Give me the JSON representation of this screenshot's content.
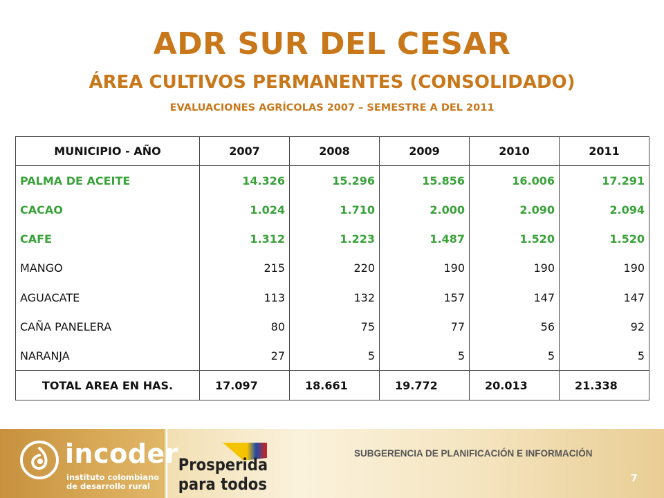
{
  "header": {
    "title": "ADR SUR DEL CESAR",
    "subtitle": "ÁREA CULTIVOS PERMANENTES (CONSOLIDADO)",
    "subsubtitle": "EVALUACIONES AGRÍCOLAS 2007 – SEMESTRE A DEL 2011"
  },
  "colors": {
    "title": "#c8781a",
    "highlight_rows": "#3aa23a",
    "footer_band": "#e9cd94"
  },
  "table": {
    "columns": [
      "MUNICIPIO - AÑO",
      "2007",
      "2008",
      "2009",
      "2010",
      "2011"
    ],
    "rows": [
      {
        "label": "PALMA DE ACEITE",
        "values": [
          "14.326",
          "15.296",
          "15.856",
          "16.006",
          "17.291"
        ]
      },
      {
        "label": "CACAO",
        "values": [
          "1.024",
          "1.710",
          "2.000",
          "2.090",
          "2.094"
        ]
      },
      {
        "label": "CAFE",
        "values": [
          "1.312",
          "1.223",
          "1.487",
          "1.520",
          "1.520"
        ]
      },
      {
        "label": "MANGO",
        "values": [
          "215",
          "220",
          "190",
          "190",
          "190"
        ]
      },
      {
        "label": "AGUACATE",
        "values": [
          "113",
          "132",
          "157",
          "147",
          "147"
        ]
      },
      {
        "label": "CAÑA PANELERA",
        "values": [
          "80",
          "75",
          "77",
          "56",
          "92"
        ]
      },
      {
        "label": "NARANJA",
        "values": [
          "27",
          "5",
          "5",
          "5",
          "5"
        ]
      }
    ],
    "total": {
      "label": "TOTAL AREA EN HAS.",
      "values": [
        "17.097",
        "18.661",
        "19.772",
        "20.013",
        "21.338"
      ]
    }
  },
  "footer": {
    "logo_name": "incoder",
    "logo_line1": "instituto colombiano",
    "logo_line2": "de desarrollo rural",
    "slogan_line1": "Prosperidad",
    "slogan_line2": "para todos",
    "subgerencia": "SUBGERENCIA DE PLANIFICACIÓN E INFORMACIÓN",
    "slide_number": "7"
  }
}
